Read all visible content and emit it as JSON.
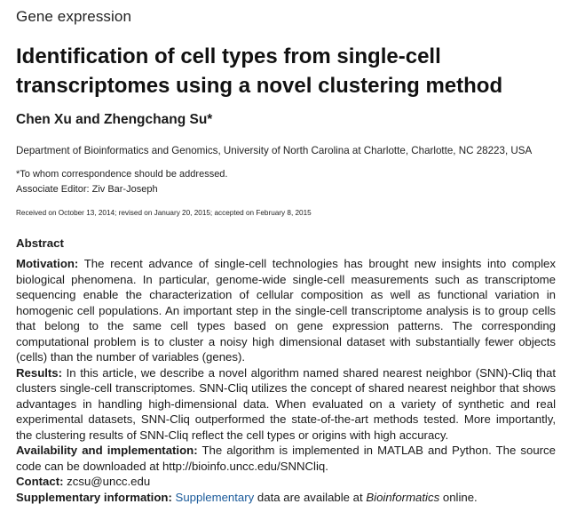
{
  "section_label": "Gene expression",
  "title": "Identification of cell types from single-cell transcriptomes using a novel clustering method",
  "authors": "Chen Xu and Zhengchang Su*",
  "affiliation": "Department of Bioinformatics and Genomics, University of North Carolina at Charlotte, Charlotte, NC 28223, USA",
  "correspondence": "*To whom correspondence should be addressed.",
  "associate_editor": "Associate Editor: Ziv Bar-Joseph",
  "dates": "Received on October 13, 2014; revised on January 20, 2015; accepted on February 8, 2015",
  "abstract": {
    "heading": "Abstract",
    "motivation": {
      "label": "Motivation:",
      "text": "The recent advance of single-cell technologies has brought new insights into complex biological phenomena. In particular, genome-wide single-cell measurements such as transcriptome sequencing enable the characterization of cellular composition as well as functional variation in homogenic cell populations. An important step in the single-cell transcriptome analysis is to group cells that belong to the same cell types based on gene expression patterns. The corresponding computational problem is to cluster a noisy high dimensional dataset with substantially fewer objects (cells) than the number of variables (genes)."
    },
    "results": {
      "label": "Results:",
      "text": "In this article, we describe a novel algorithm named shared nearest neighbor (SNN)-Cliq that clusters single-cell transcriptomes. SNN-Cliq utilizes the concept of shared nearest neighbor that shows advantages in handling high-dimensional data. When evaluated on a variety of synthetic and real experimental datasets, SNN-Cliq outperformed the state-of-the-art methods tested. More importantly, the clustering results of SNN-Cliq reflect the cell types or origins with high accuracy."
    },
    "availability": {
      "label": "Availability and implementation:",
      "text": "The algorithm is implemented in MATLAB and Python. The source code can be downloaded at http://bioinfo.uncc.edu/SNNCliq."
    },
    "contact": {
      "label": "Contact:",
      "text": "zcsu@uncc.edu"
    },
    "supplementary": {
      "label": "Supplementary information:",
      "link_text": "Supplementary",
      "text_middle": "data are available at",
      "journal": "Bioinformatics",
      "text_end": "online."
    }
  }
}
